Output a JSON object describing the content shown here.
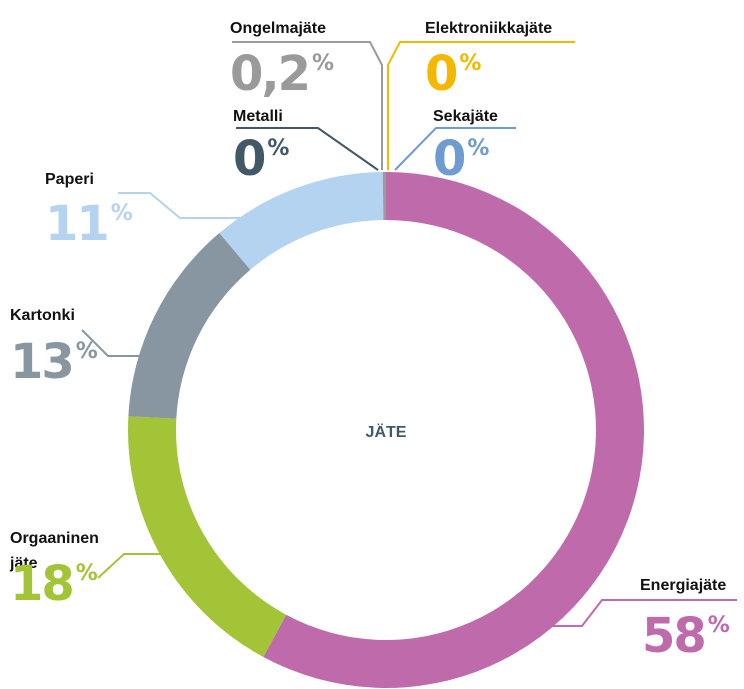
{
  "chart_data": {
    "type": "donut",
    "center_label": "JÄTE",
    "categories": [
      "Energiajäte",
      "Orgaaninen jäte",
      "Kartonki",
      "Paperi",
      "Metalli",
      "Ongelmajäte",
      "Elektroniikkajäte",
      "Sekajäte"
    ],
    "values": [
      58,
      18,
      13,
      11,
      0,
      0.2,
      0,
      0
    ],
    "value_labels": [
      "58%",
      "18%",
      "13%",
      "11%",
      "0%",
      "0,2%",
      "0%",
      "0%"
    ],
    "colors": [
      "#bf6aaa",
      "#a3c437",
      "#8796a0",
      "#b3d3f0",
      "#435867",
      "#9a9a9a",
      "#f5b800",
      "#6e9bd0"
    ]
  }
}
